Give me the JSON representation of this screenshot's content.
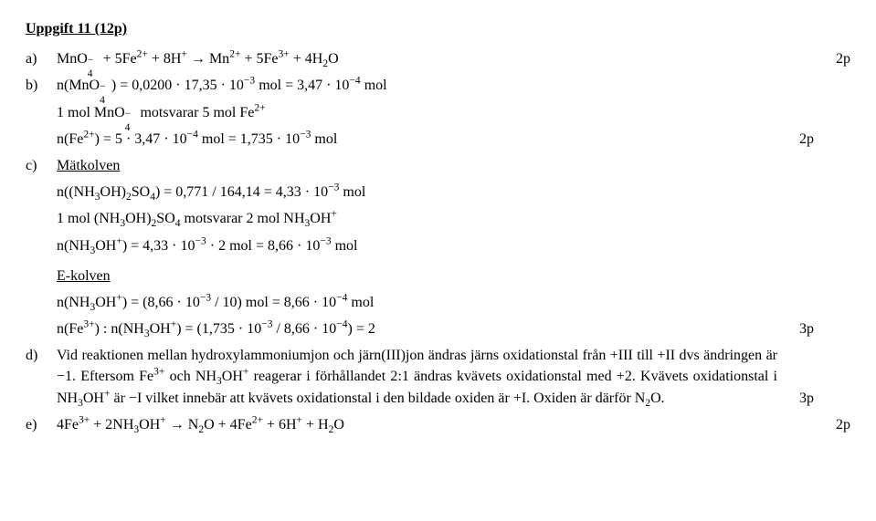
{
  "title": "Uppgift 11 (12p)",
  "items": {
    "a": {
      "label": "a)",
      "eq": "MnO<span class='stack'><span class='ssup'>−</span><span class='ssub'>4</span></span>&nbsp; + 5Fe<sup>2+</sup> + 8H<sup>+</sup> → Mn<sup>2+</sup> + 5Fe<sup>3+</sup> + 4H<sub>2</sub>O",
      "pts": "2p"
    },
    "b": {
      "label": "b)",
      "l1": "n(MnO<span class='stack'><span class='ssup'>−</span><span class='ssub'>4</span></span>&nbsp;) = 0,0200 · 17,35 · 10<sup>−3</sup> mol = 3,47 · 10<sup>−4</sup> mol",
      "l2": "1 mol MnO<span class='stack'><span class='ssup'>−</span><span class='ssub'>4</span></span>&nbsp; motsvarar 5 mol Fe<sup>2+</sup>",
      "l3": "n(Fe<sup>2+</sup>) = 5 · 3,47 · 10<sup>−4</sup> mol = 1,735 · 10<sup>−3</sup> mol",
      "pts": "2p"
    },
    "c": {
      "label": "c)",
      "h1": "Mätkolven",
      "m1": "n((NH<sub>3</sub>OH)<sub>2</sub>SO<sub>4</sub>) = 0,771 / 164,14 = 4,33 · 10<sup>−3</sup> mol",
      "m2": "1 mol (NH<sub>3</sub>OH)<sub>2</sub>SO<sub>4</sub> motsvarar 2 mol NH<sub>3</sub>OH<sup>+</sup>",
      "m3": "n(NH<sub>3</sub>OH<sup>+</sup>) = 4,33 · 10<sup>−3</sup> · 2 mol = 8,66 · 10<sup>−3</sup> mol",
      "h2": "E-kolven",
      "e1": "n(NH<sub>3</sub>OH<sup>+</sup>) = (8,66 · 10<sup>−3</sup> / 10) mol = 8,66 · 10<sup>−4</sup> mol",
      "e2": "n(Fe<sup>3+</sup>) : n(NH<sub>3</sub>OH<sup>+</sup>)  = (1,735 · 10<sup>−3</sup> / 8,66 · 10<sup>−4</sup>) = 2",
      "pts": "3p"
    },
    "d": {
      "label": "d)",
      "text": "Vid reaktionen mellan hydroxylammoniumjon och järn(III)jon ändras järns oxidationstal från +III till +II dvs ändringen är −1. Eftersom Fe<sup>3+</sup> och NH<sub>3</sub>OH<sup>+</sup> reagerar i förhållandet 2:1 ändras kvävets oxidationstal med +2. Kvävets oxidationstal i NH<sub>3</sub>OH<sup>+</sup> är −I vilket innebär att kvävets oxidationstal i den bildade oxiden är +I. Oxiden är därför N<sub>2</sub>O.",
      "pts": "3p"
    },
    "e": {
      "label": "e)",
      "eq": "4Fe<sup>3+</sup> + 2NH<sub>3</sub>OH<sup>+</sup> →  N<sub>2</sub>O  + 4Fe<sup>2+</sup>  + 6H<sup>+</sup>  + H<sub>2</sub>O",
      "pts": "2p"
    }
  }
}
